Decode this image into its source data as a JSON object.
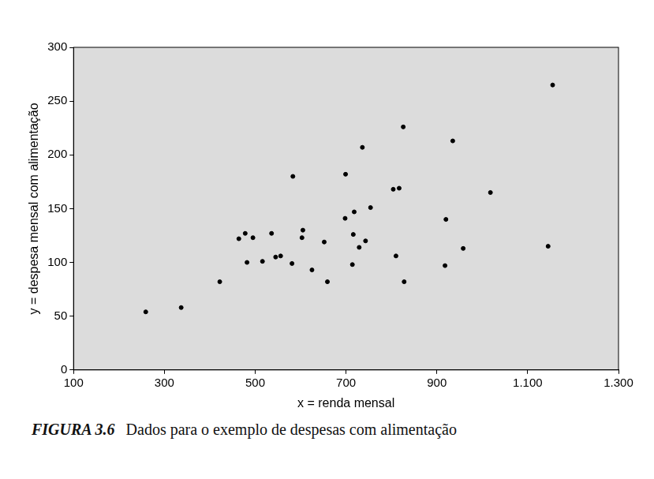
{
  "chart_data": {
    "type": "scatter",
    "title": "FIGURA 3.6",
    "subtitle": "Dados para o exemplo de despesas com alimentação",
    "x_label": "x = renda mensal",
    "y_label": "y = despesa mensal com alimentação",
    "x": [
      259,
      337,
      422,
      464,
      478,
      482,
      495,
      516,
      536,
      545,
      556,
      583,
      581,
      603,
      605,
      625,
      652,
      659,
      699,
      698,
      714,
      718,
      716,
      729,
      736,
      743,
      754,
      804,
      810,
      817,
      826,
      828,
      920,
      918,
      935,
      958,
      1018,
      1145,
      1155
    ],
    "values": [
      54,
      58,
      82,
      122,
      127,
      100,
      123,
      101,
      127,
      105,
      106,
      180,
      99,
      123,
      130,
      93,
      119,
      82,
      182,
      141,
      98,
      147,
      126,
      114,
      207,
      120,
      151,
      168,
      106,
      169,
      226,
      82,
      140,
      97,
      213,
      113,
      165,
      115,
      265
    ],
    "color": "#000000",
    "marker": "circle",
    "xlim": [
      100,
      1300
    ],
    "xticks": [
      100,
      300,
      500,
      700,
      900,
      {
        "value": 1100,
        "label": "1.100"
      },
      {
        "value": 1300,
        "label": "1.300"
      }
    ],
    "ylim": [
      0,
      300
    ],
    "yticks": [
      0,
      50,
      100,
      150,
      200,
      250,
      300
    ],
    "grid": false
  }
}
